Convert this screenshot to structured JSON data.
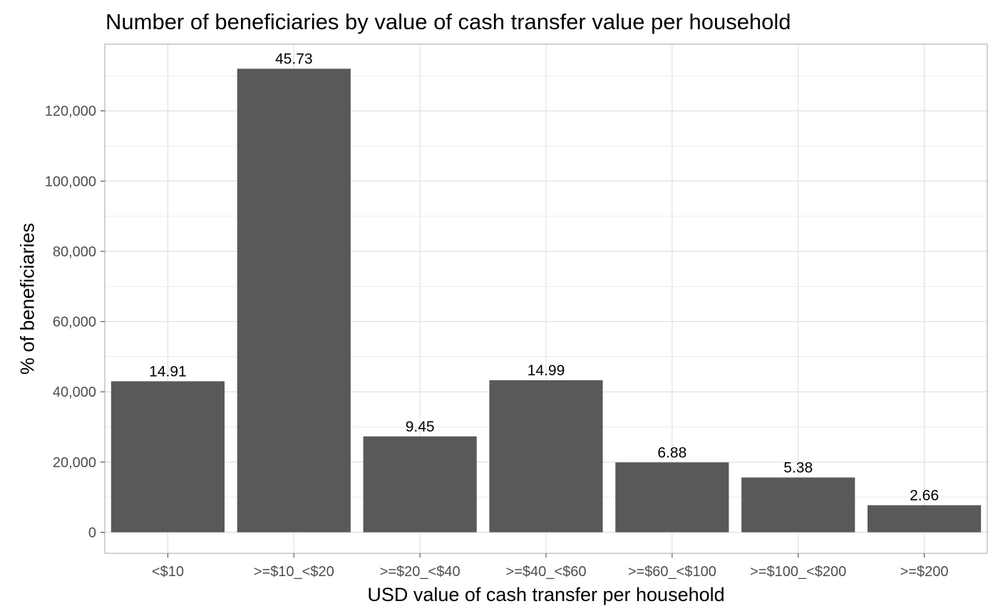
{
  "chart_data": {
    "type": "bar",
    "title": "Number of beneficiaries by value of cash transfer value per household",
    "xlabel": "USD value of cash transfer per household",
    "ylabel": "% of beneficiaries",
    "categories": [
      "<$10",
      ">=$10_<$20",
      ">=$20_<$40",
      ">=$40_<$60",
      ">=$60_<$100",
      ">=$100_<$200",
      ">=$200"
    ],
    "values": [
      43000,
      132000,
      27300,
      43300,
      19900,
      15600,
      7700
    ],
    "data_labels": [
      "14.91",
      "45.73",
      "9.45",
      "14.99",
      "6.88",
      "5.38",
      "2.66"
    ],
    "y_ticks": [
      0,
      20000,
      40000,
      60000,
      80000,
      100000,
      120000
    ],
    "y_tick_labels": [
      "0",
      "20,000",
      "40,000",
      "60,000",
      "80,000",
      "100,000",
      "120,000"
    ],
    "ylim": [
      -6000,
      139000
    ],
    "grid": true,
    "legend": "none",
    "colors": {
      "bar": "#595959",
      "grid": "#dedede",
      "panel_border": "#b3b3b3",
      "tick": "#4d4d4d"
    }
  }
}
